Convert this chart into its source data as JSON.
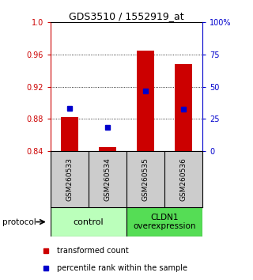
{
  "title": "GDS3510 / 1552919_at",
  "samples": [
    "GSM260533",
    "GSM260534",
    "GSM260535",
    "GSM260536"
  ],
  "bar_bottom": 0.84,
  "bar_tops": [
    0.882,
    0.845,
    0.965,
    0.948
  ],
  "percentile_values": [
    0.893,
    0.87,
    0.915,
    0.892
  ],
  "ylim_left": [
    0.84,
    1.0
  ],
  "ylim_right": [
    0,
    100
  ],
  "yticks_left": [
    0.84,
    0.88,
    0.92,
    0.96,
    1.0
  ],
  "yticks_right": [
    0,
    25,
    50,
    75,
    100
  ],
  "ytick_labels_right": [
    "0",
    "25",
    "50",
    "75",
    "100%"
  ],
  "bar_color": "#cc0000",
  "dot_color": "#0000cc",
  "group1_label": "control",
  "group2_label": "CLDN1\noverexpression",
  "group1_color": "#bbffbb",
  "group2_color": "#55dd55",
  "protocol_label": "protocol",
  "legend_bar_label": "transformed count",
  "legend_dot_label": "percentile rank within the sample",
  "left_tick_color": "#cc0000",
  "right_tick_color": "#0000cc",
  "bar_width": 0.45,
  "figsize": [
    3.2,
    3.54
  ],
  "dpi": 100
}
